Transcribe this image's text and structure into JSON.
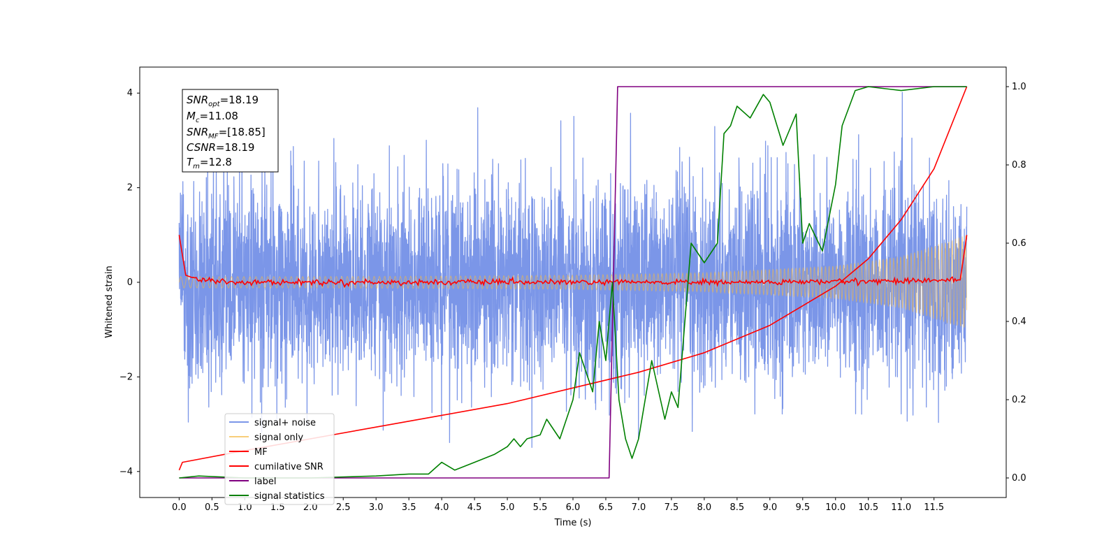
{
  "chart_data": {
    "type": "line",
    "xlabel": "Time (s)",
    "ylabel": "Whitened strain",
    "y2label": "",
    "xlim": [
      -0.6,
      12.6
    ],
    "ylim": [
      -4.55,
      4.55
    ],
    "y2lim": [
      -0.05,
      1.05
    ],
    "x_ticks": [
      "0.0",
      "0.5",
      "1.0",
      "1.5",
      "2.0",
      "2.5",
      "3.0",
      "3.5",
      "4.0",
      "4.5",
      "5.0",
      "5.5",
      "6.0",
      "6.5",
      "7.0",
      "7.5",
      "8.0",
      "8.5",
      "9.0",
      "9.5",
      "10.0",
      "10.5",
      "11.0",
      "11.5"
    ],
    "y_ticks": [
      "-4",
      "-2",
      "0",
      "2",
      "4"
    ],
    "y2_ticks": [
      "0.0",
      "0.2",
      "0.4",
      "0.6",
      "0.8",
      "1.0"
    ],
    "grid": false,
    "legend_position": "lower-left",
    "info_box": [
      "SNRopt=18.19",
      "Mc=11.08",
      "SNRMF=[18.85]",
      "CSNR=18.19",
      "Tm=12.8"
    ],
    "series": [
      {
        "name": "signal+ noise",
        "color": "#7b96e8",
        "axis": "left",
        "description": "white noise, amplitude approx ±2.5 with peaks to ±4.1, x 0 to 12"
      },
      {
        "name": "signal only",
        "color": "#f5b942",
        "axis": "left",
        "envelope_x": [
          0,
          2,
          4,
          6,
          8,
          10,
          11,
          12
        ],
        "envelope_y": [
          0.12,
          0.12,
          0.13,
          0.15,
          0.2,
          0.35,
          0.55,
          1.0
        ]
      },
      {
        "name": "MF",
        "color": "#ff0000",
        "axis": "left",
        "x": [
          0,
          0.1,
          0.3,
          1,
          3,
          6,
          9,
          11.9,
          12
        ],
        "y": [
          1.0,
          0.15,
          0.05,
          0.0,
          0.0,
          0.0,
          0.0,
          0.05,
          1.0
        ]
      },
      {
        "name": "cumilative SNR",
        "color": "#ff0000",
        "axis": "right",
        "x": [
          0,
          0.05,
          1,
          2,
          3,
          4,
          5,
          6,
          7,
          8,
          9,
          10,
          10.5,
          11,
          11.5,
          12
        ],
        "y": [
          0.02,
          0.04,
          0.07,
          0.1,
          0.13,
          0.16,
          0.19,
          0.23,
          0.27,
          0.32,
          0.39,
          0.49,
          0.56,
          0.66,
          0.79,
          1.0
        ]
      },
      {
        "name": "label",
        "color": "#800080",
        "axis": "right",
        "x": [
          0,
          6.55,
          6.68,
          12
        ],
        "y": [
          0.0,
          0.0,
          1.0,
          1.0
        ]
      },
      {
        "name": "signal statistics",
        "color": "#008000",
        "axis": "right",
        "x": [
          0,
          0.3,
          1,
          2,
          3,
          3.5,
          3.8,
          4.0,
          4.2,
          4.5,
          4.8,
          5.0,
          5.1,
          5.2,
          5.3,
          5.5,
          5.6,
          5.8,
          6.0,
          6.1,
          6.3,
          6.4,
          6.5,
          6.6,
          6.7,
          6.8,
          6.9,
          7.0,
          7.2,
          7.4,
          7.5,
          7.6,
          7.8,
          8.0,
          8.2,
          8.3,
          8.4,
          8.5,
          8.7,
          8.9,
          9.0,
          9.2,
          9.4,
          9.5,
          9.6,
          9.8,
          10.0,
          10.1,
          10.3,
          10.5,
          11.0,
          11.5,
          12
        ],
        "y": [
          0.0,
          0.005,
          0.0,
          0.0,
          0.005,
          0.01,
          0.01,
          0.04,
          0.02,
          0.04,
          0.06,
          0.08,
          0.1,
          0.08,
          0.1,
          0.11,
          0.15,
          0.1,
          0.2,
          0.32,
          0.22,
          0.4,
          0.3,
          0.5,
          0.2,
          0.1,
          0.05,
          0.1,
          0.3,
          0.15,
          0.22,
          0.18,
          0.6,
          0.55,
          0.6,
          0.88,
          0.9,
          0.95,
          0.92,
          0.98,
          0.96,
          0.85,
          0.93,
          0.6,
          0.65,
          0.58,
          0.75,
          0.9,
          0.99,
          1.0,
          0.99,
          1.0,
          1.0
        ]
      }
    ]
  }
}
